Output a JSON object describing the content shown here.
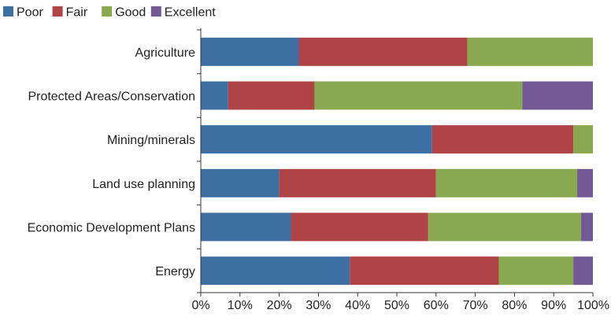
{
  "chart_data": {
    "type": "bar",
    "orientation": "horizontal",
    "stacked": true,
    "title": "",
    "xlabel": "",
    "ylabel": "",
    "xlim": [
      0,
      100
    ],
    "x_ticks": [
      "0%",
      "10%",
      "20%",
      "30%",
      "40%",
      "50%",
      "60%",
      "70%",
      "80%",
      "90%",
      "100%"
    ],
    "grid": false,
    "legend_position": "top-left",
    "categories": [
      "Agriculture",
      "Protected Areas/Conservation",
      "Mining/minerals",
      "Land use planning",
      "Economic Development Plans",
      "Energy"
    ],
    "series": [
      {
        "name": "Poor",
        "color": "#3d6fa5",
        "values": [
          25,
          7,
          59,
          20,
          23,
          38
        ]
      },
      {
        "name": "Fair",
        "color": "#ae4445",
        "values": [
          43,
          22,
          36,
          40,
          35,
          38
        ]
      },
      {
        "name": "Good",
        "color": "#8aa84f",
        "values": [
          32,
          53,
          5,
          36,
          39,
          19
        ]
      },
      {
        "name": "Excellent",
        "color": "#735896",
        "values": [
          0,
          18,
          0,
          4,
          3,
          5
        ]
      }
    ]
  }
}
